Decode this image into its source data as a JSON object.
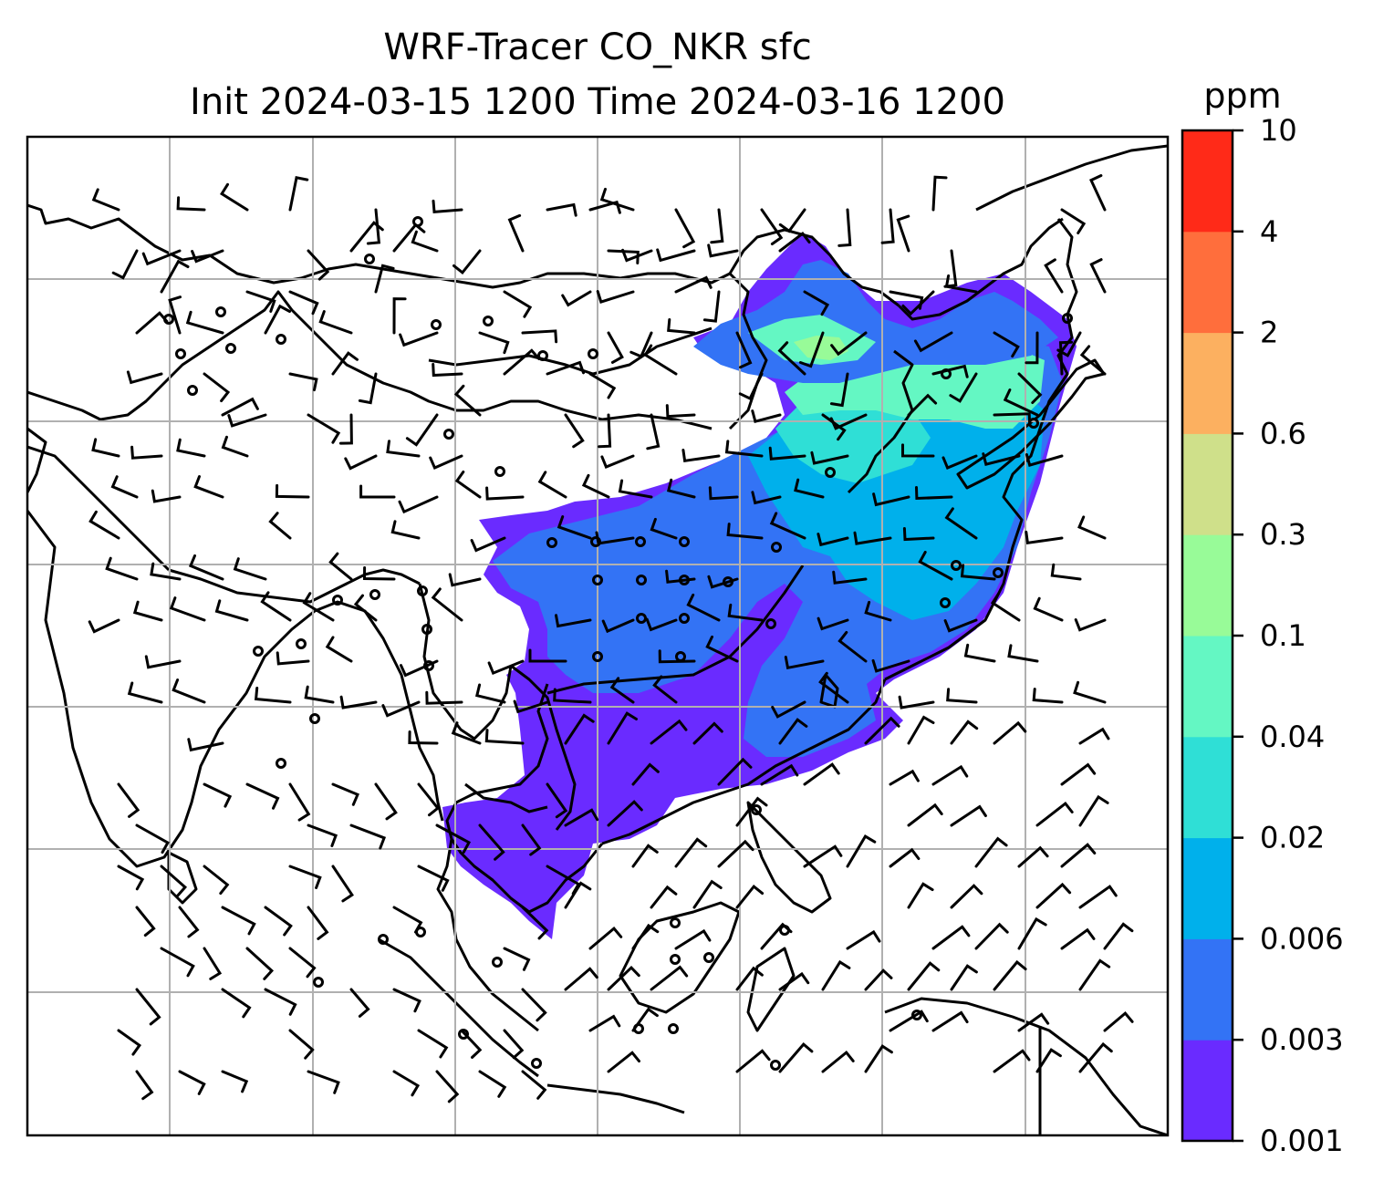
{
  "title_line1": "WRF-Tracer CO_NKR sfc",
  "title_line2": "Init 2024-03-15 1200 Time 2024-03-16 1200",
  "colorbar": {
    "unit": "ppm",
    "levels": [
      "0.001",
      "0.003",
      "0.006",
      "0.02",
      "0.04",
      "0.1",
      "0.3",
      "0.6",
      "2",
      "4",
      "10"
    ],
    "colors": [
      "#6a2bff",
      "#3373f5",
      "#00b0eb",
      "#2fdfd6",
      "#64f7c3",
      "#98fb98",
      "#cfe08a",
      "#fcb060",
      "#ff6e3c",
      "#ff2a18"
    ]
  },
  "map": {
    "field": "CO_NKR tracer concentration",
    "gridlines": true,
    "wind_barbs": true,
    "coastlines": true,
    "frame_color": "#000000",
    "grid_color": "#b0b0b0"
  }
}
